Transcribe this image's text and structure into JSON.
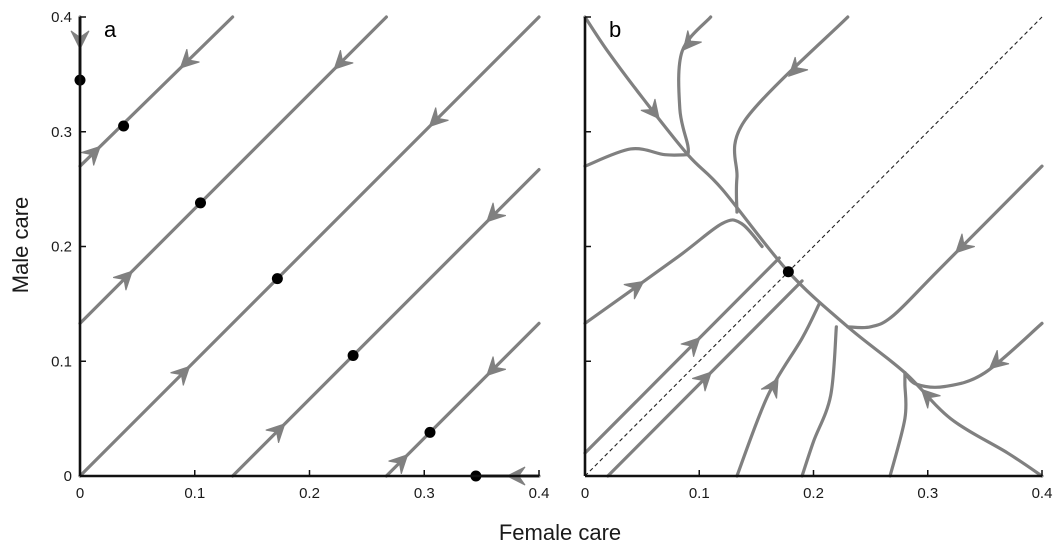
{
  "colors": {
    "trajectory": "#808080",
    "equilibrium": "#000000",
    "axis": "#111111",
    "diagonal": "#222222"
  },
  "chart_data": [
    {
      "type": "line",
      "panel_label": "a",
      "xlabel": "Female care",
      "ylabel": "Male care",
      "xlim": [
        0,
        0.4
      ],
      "ylim": [
        0,
        0.4
      ],
      "xticks": [
        "0",
        "0.1",
        "0.2",
        "0.3",
        "0.4"
      ],
      "yticks": [
        "0",
        "0.1",
        "0.2",
        "0.3",
        "0.4"
      ],
      "grid": false,
      "diagonal_reference": true,
      "series": [
        {
          "points": [
            [
              0.0,
              0.27
            ],
            [
              0.133,
              0.4
            ]
          ],
          "arrows": [
            {
              "at": 0.012,
              "dir": "up"
            },
            {
              "at": 0.093,
              "dir": "down"
            }
          ]
        },
        {
          "points": [
            [
              0.0,
              0.133
            ],
            [
              0.267,
              0.4
            ]
          ],
          "arrows": [
            {
              "at": 0.04,
              "dir": "up"
            },
            {
              "at": 0.227,
              "dir": "down"
            }
          ]
        },
        {
          "points": [
            [
              0.0,
              0.0
            ],
            [
              0.4,
              0.4
            ]
          ],
          "arrows": [
            {
              "at": 0.09,
              "dir": "up"
            },
            {
              "at": 0.31,
              "dir": "down"
            }
          ]
        },
        {
          "points": [
            [
              0.133,
              0.0
            ],
            [
              0.4,
              0.267
            ]
          ],
          "arrows": [
            {
              "at": 0.173,
              "dir": "up"
            },
            {
              "at": 0.36,
              "dir": "down"
            }
          ]
        },
        {
          "points": [
            [
              0.267,
              0.0
            ],
            [
              0.4,
              0.133
            ]
          ],
          "arrows": [
            {
              "at": 0.28,
              "dir": "up"
            },
            {
              "at": 0.36,
              "dir": "down"
            }
          ]
        },
        {
          "points": [
            [
              0.0,
              0.4
            ],
            [
              0.0,
              0.345
            ]
          ],
          "arrows": [
            {
              "at": 0.38,
              "dir": "down"
            }
          ]
        },
        {
          "points": [
            [
              0.4,
              0.0
            ],
            [
              0.345,
              0.0
            ]
          ],
          "arrows": [
            {
              "at": 0.38,
              "dir": "left"
            }
          ]
        }
      ],
      "equilibria": [
        [
          0.0,
          0.345
        ],
        [
          0.038,
          0.305
        ],
        [
          0.105,
          0.238
        ],
        [
          0.172,
          0.172
        ],
        [
          0.238,
          0.105
        ],
        [
          0.305,
          0.038
        ],
        [
          0.345,
          0.0
        ]
      ]
    },
    {
      "type": "line",
      "panel_label": "b",
      "xlabel": "Female care",
      "ylabel": "Male care",
      "xlim": [
        0,
        0.4
      ],
      "ylim": [
        0,
        0.4
      ],
      "xticks": [
        "0",
        "0.1",
        "0.2",
        "0.3",
        "0.4"
      ],
      "yticks": [
        "0",
        "0.1",
        "0.2",
        "0.3",
        "0.4"
      ],
      "grid": false,
      "diagonal_reference": true,
      "series": [
        {
          "points": [
            [
              0.0,
              0.4
            ],
            [
              0.02,
              0.37
            ],
            [
              0.05,
              0.33
            ],
            [
              0.09,
              0.28
            ],
            [
              0.12,
              0.25
            ],
            [
              0.178,
              0.178
            ],
            [
              0.23,
              0.13
            ],
            [
              0.28,
              0.09
            ],
            [
              0.32,
              0.05
            ],
            [
              0.37,
              0.02
            ],
            [
              0.4,
              0.0
            ]
          ],
          "arrows": [
            {
              "at": 0.06,
              "dir": "down"
            },
            {
              "at": 0.3,
              "dir": "up"
            }
          ]
        },
        {
          "points": [
            [
              0.11,
              0.4
            ],
            [
              0.085,
              0.37
            ],
            [
              0.083,
              0.32
            ],
            [
              0.09,
              0.288
            ],
            [
              0.09,
              0.28
            ]
          ],
          "arrows": [
            {
              "at": 0.091,
              "dir": "down"
            }
          ]
        },
        {
          "points": [
            [
              0.23,
              0.4
            ],
            [
              0.14,
              0.31
            ],
            [
              0.133,
              0.26
            ],
            [
              0.133,
              0.23
            ]
          ],
          "arrows": [
            {
              "at": 0.184,
              "dir": "down"
            }
          ]
        },
        {
          "points": [
            [
              0.0,
              0.27
            ],
            [
              0.04,
              0.285
            ],
            [
              0.07,
              0.28
            ],
            [
              0.09,
              0.28
            ]
          ],
          "arrows": []
        },
        {
          "points": [
            [
              0.0,
              0.133
            ],
            [
              0.08,
              0.19
            ],
            [
              0.12,
              0.22
            ],
            [
              0.137,
              0.22
            ],
            [
              0.155,
              0.2
            ]
          ],
          "arrows": [
            {
              "at": 0.045,
              "dir": "up"
            }
          ]
        },
        {
          "points": [
            [
              0.4,
              0.27
            ],
            [
              0.31,
              0.18
            ],
            [
              0.27,
              0.14
            ],
            [
              0.25,
              0.13
            ],
            [
              0.23,
              0.13
            ]
          ],
          "arrows": [
            {
              "at": 0.33,
              "dir": "down"
            }
          ]
        },
        {
          "points": [
            [
              0.4,
              0.133
            ],
            [
              0.35,
              0.09
            ],
            [
              0.315,
              0.078
            ],
            [
              0.29,
              0.08
            ],
            [
              0.28,
              0.09
            ]
          ],
          "arrows": [
            {
              "at": 0.36,
              "dir": "down"
            }
          ]
        },
        {
          "points": [
            [
              0.0,
              0.02
            ],
            [
              0.17,
              0.19
            ]
          ],
          "arrows": [
            {
              "at": 0.095,
              "dir": "up"
            }
          ]
        },
        {
          "points": [
            [
              0.02,
              0.0
            ],
            [
              0.19,
              0.17
            ]
          ],
          "arrows": [
            {
              "at": 0.105,
              "dir": "up"
            }
          ]
        },
        {
          "points": [
            [
              0.133,
              0.0
            ],
            [
              0.16,
              0.07
            ],
            [
              0.19,
              0.12
            ],
            [
              0.205,
              0.15
            ]
          ],
          "arrows": [
            {
              "at": 0.165,
              "dir": "up"
            }
          ]
        },
        {
          "points": [
            [
              0.22,
              0.13
            ],
            [
              0.215,
              0.07
            ],
            [
              0.2,
              0.03
            ],
            [
              0.19,
              0.0
            ]
          ],
          "arrows": []
        },
        {
          "points": [
            [
              0.267,
              0.0
            ],
            [
              0.28,
              0.05
            ],
            [
              0.28,
              0.08
            ],
            [
              0.28,
              0.09
            ]
          ],
          "arrows": []
        }
      ],
      "equilibria": [
        [
          0.178,
          0.178
        ]
      ]
    }
  ]
}
